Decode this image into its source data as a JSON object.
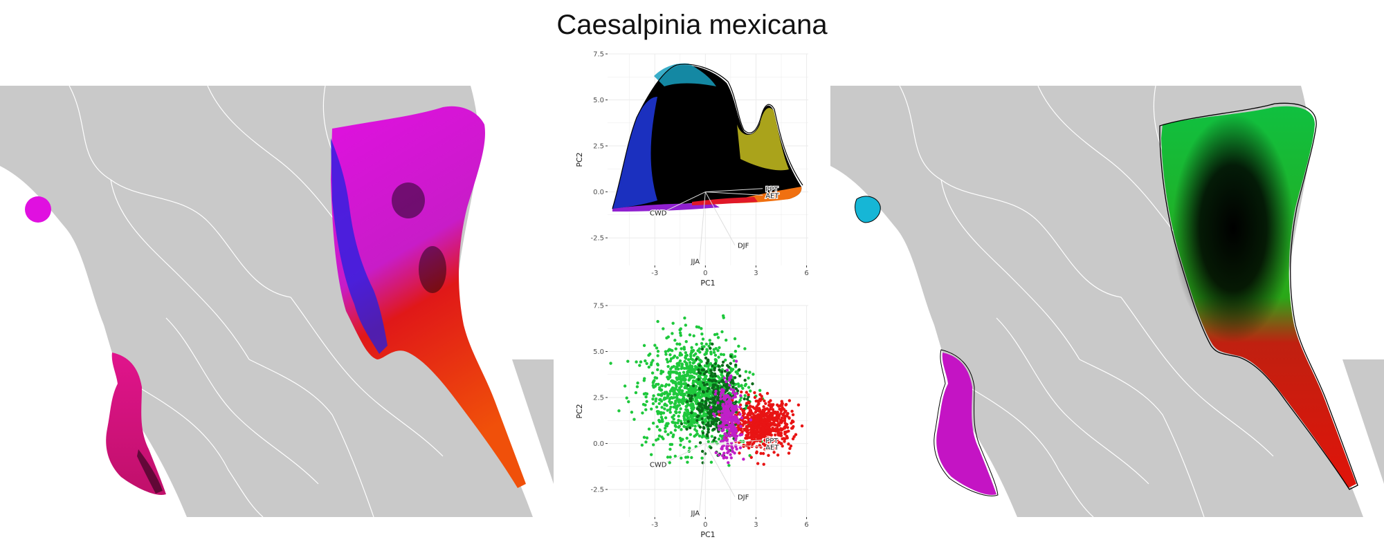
{
  "title": "Caesalpinia mexicana",
  "colors": {
    "background_map": "#c9c9c9",
    "borders": "#ffffff",
    "magenta": "#e010e0",
    "red": "#e0180a",
    "green": "#10c040",
    "cyan": "#16b6d6",
    "black": "#000000"
  },
  "chart_data": [
    {
      "type": "scatter",
      "panel": "top",
      "description_style": "colored-density",
      "xlabel": "PC1",
      "ylabel": "PC2",
      "xlim": [
        -5.8,
        6.1
      ],
      "ylim": [
        -4.0,
        7.5
      ],
      "x_ticks": [
        "-3",
        "0",
        "3",
        "6"
      ],
      "y_ticks": [
        "-2.5",
        "0.0",
        "2.5",
        "5.0",
        "7.5"
      ],
      "grid": true,
      "legend": "none",
      "vectors": [
        {
          "label": "PPT",
          "x": 3.4,
          "y": 0.18
        },
        {
          "label": "AET",
          "x": 3.4,
          "y": -0.18
        },
        {
          "label": "CWD",
          "x": -2.55,
          "y": -1.12
        },
        {
          "label": "JJA",
          "x": -0.35,
          "y": -3.75
        },
        {
          "label": "DJF",
          "x": 1.75,
          "y": -2.9
        }
      ]
    },
    {
      "type": "scatter",
      "panel": "bottom",
      "xlabel": "PC1",
      "ylabel": "PC2",
      "xlim": [
        -5.8,
        6.1
      ],
      "ylim": [
        -4.0,
        7.5
      ],
      "x_ticks": [
        "-3",
        "0",
        "3",
        "6"
      ],
      "y_ticks": [
        "-2.5",
        "0.0",
        "2.5",
        "5.0",
        "7.5"
      ],
      "grid": true,
      "legend": "none",
      "clusters": [
        {
          "color": "#1ec83c",
          "cx": -0.6,
          "cy": 2.8,
          "rx": 3.2,
          "ry": 3.0,
          "n": 1100
        },
        {
          "color": "#0a6a1a",
          "cx": 0.7,
          "cy": 2.2,
          "rx": 1.6,
          "ry": 2.4,
          "n": 380
        },
        {
          "color": "#e81414",
          "cx": 3.4,
          "cy": 1.0,
          "rx": 1.9,
          "ry": 1.4,
          "n": 650
        },
        {
          "color": "#c020c8",
          "cx": 1.4,
          "cy": 1.2,
          "rx": 0.8,
          "ry": 2.2,
          "n": 260
        }
      ],
      "vectors": [
        {
          "label": "PPT",
          "x": 3.4,
          "y": 0.18
        },
        {
          "label": "AET",
          "x": 3.4,
          "y": -0.18
        },
        {
          "label": "CWD",
          "x": -2.55,
          "y": -1.12
        },
        {
          "label": "JJA",
          "x": -0.35,
          "y": -3.75
        },
        {
          "label": "DJF",
          "x": 1.75,
          "y": -2.9
        }
      ]
    }
  ]
}
